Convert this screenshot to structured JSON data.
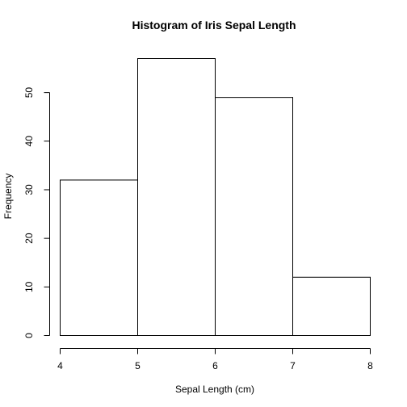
{
  "chart_data": {
    "type": "bar",
    "title": "Histogram of Iris Sepal Length",
    "xlabel": "Sepal Length (cm)",
    "ylabel": "Frequency",
    "bins": [
      {
        "start": 4,
        "end": 5,
        "count": 32
      },
      {
        "start": 5,
        "end": 6,
        "count": 57
      },
      {
        "start": 6,
        "end": 7,
        "count": 49
      },
      {
        "start": 7,
        "end": 8,
        "count": 12
      }
    ],
    "xlim": [
      4,
      8
    ],
    "ylim": [
      0,
      57
    ],
    "xticks": [
      4,
      5,
      6,
      7,
      8
    ],
    "yticks": [
      0,
      10,
      20,
      30,
      40,
      50
    ],
    "grid": false,
    "legend": "none",
    "colors": {
      "bar_fill": "#ffffff",
      "bar_stroke": "#000000",
      "text": "#000000"
    }
  }
}
